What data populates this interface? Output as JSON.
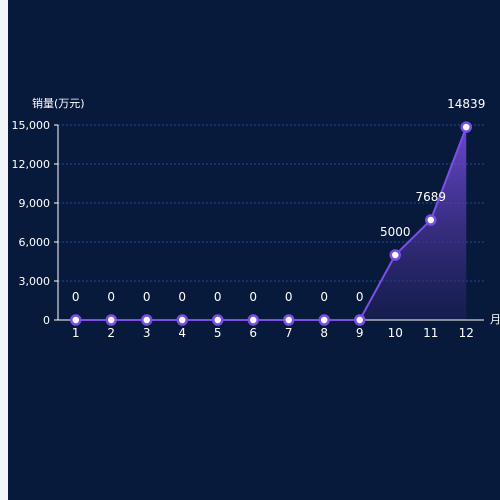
{
  "colors": {
    "background": "#081a3b",
    "grid": "#1e4a9a",
    "axis": "#ffffff",
    "text": "#ffffff",
    "line": "#7b4fe6",
    "point_fill": "#ffffff",
    "point_stroke": "#7b4fe6",
    "area_top": "#7b4fe6",
    "area_bottom": "#1f1f5c"
  },
  "chart_data": {
    "type": "area",
    "ylabel": "销量(万元)",
    "xlabel": "月",
    "categories": [
      "1",
      "2",
      "3",
      "4",
      "5",
      "6",
      "7",
      "8",
      "9",
      "10",
      "11",
      "12"
    ],
    "series": [
      {
        "values": [
          0,
          0,
          0,
          0,
          0,
          0,
          0,
          0,
          0,
          5000,
          7689,
          14839
        ]
      }
    ],
    "ylim": [
      0,
      15000
    ],
    "yticks": [
      0,
      3000,
      6000,
      9000,
      12000,
      15000
    ],
    "ytick_labels": [
      "0",
      "3,000",
      "6,000",
      "9,000",
      "12,000",
      "15,000"
    ],
    "grid": true,
    "data_labels": true
  }
}
